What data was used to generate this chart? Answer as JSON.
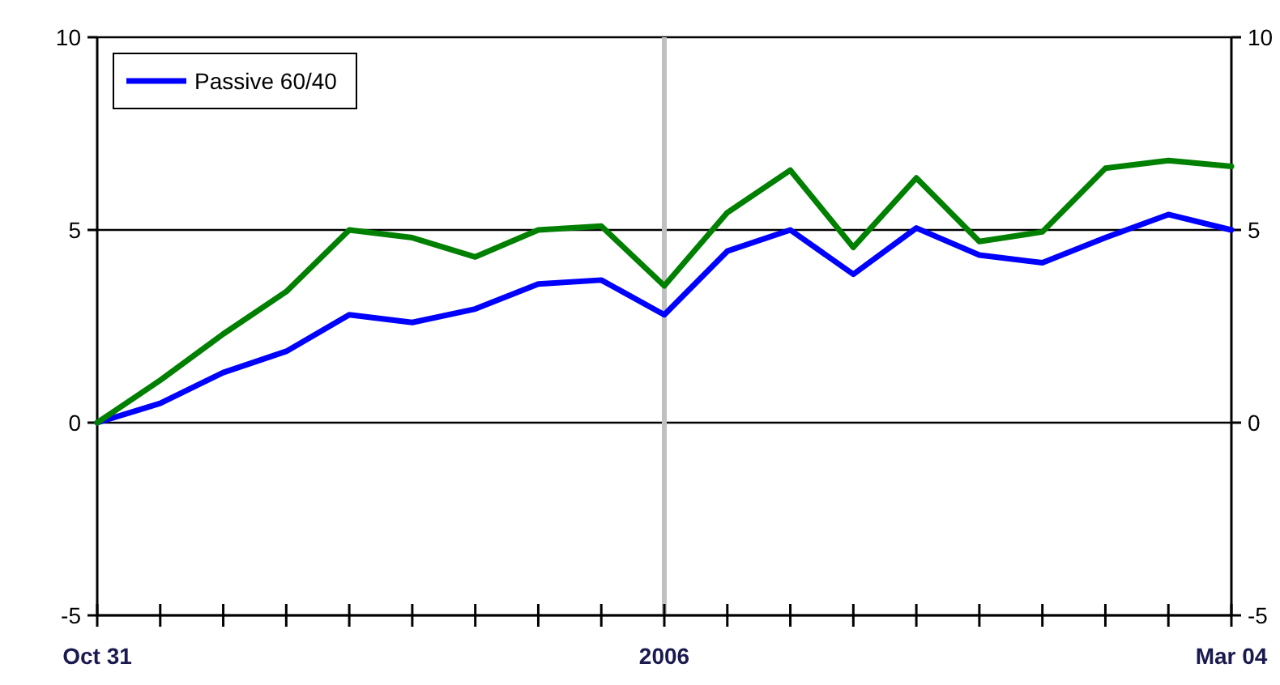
{
  "chart_data": {
    "type": "line",
    "categories": [
      "Oct 31",
      null,
      null,
      null,
      null,
      null,
      null,
      null,
      null,
      "2006",
      null,
      null,
      null,
      null,
      null,
      null,
      null,
      null,
      "Mar 04"
    ],
    "series": [
      {
        "name": "Passive 60/40",
        "color": "#0000ff",
        "values": [
          0,
          0.5,
          1.3,
          1.85,
          2.8,
          2.6,
          2.95,
          3.6,
          3.7,
          2.8,
          4.45,
          5.0,
          3.85,
          5.05,
          4.35,
          4.15,
          4.8,
          5.4,
          5.0
        ]
      },
      {
        "color": "#008000",
        "values": [
          0,
          1.1,
          2.3,
          3.4,
          5.0,
          4.8,
          4.3,
          5.0,
          5.1,
          3.55,
          5.45,
          6.55,
          4.55,
          6.35,
          4.7,
          4.95,
          6.6,
          6.8,
          6.65
        ]
      }
    ],
    "ylim": [
      -5,
      10
    ],
    "yticks": [
      -5,
      0,
      5,
      10
    ],
    "y2lim": [
      -5,
      10
    ],
    "y2ticks": [
      -5,
      0,
      5,
      10
    ],
    "grid": "y",
    "legend": "top left",
    "marker": "none",
    "line_style": "solid",
    "ref_lines": [
      {
        "axis": "x",
        "value": "2006",
        "color": "#c0c0c0"
      }
    ]
  }
}
